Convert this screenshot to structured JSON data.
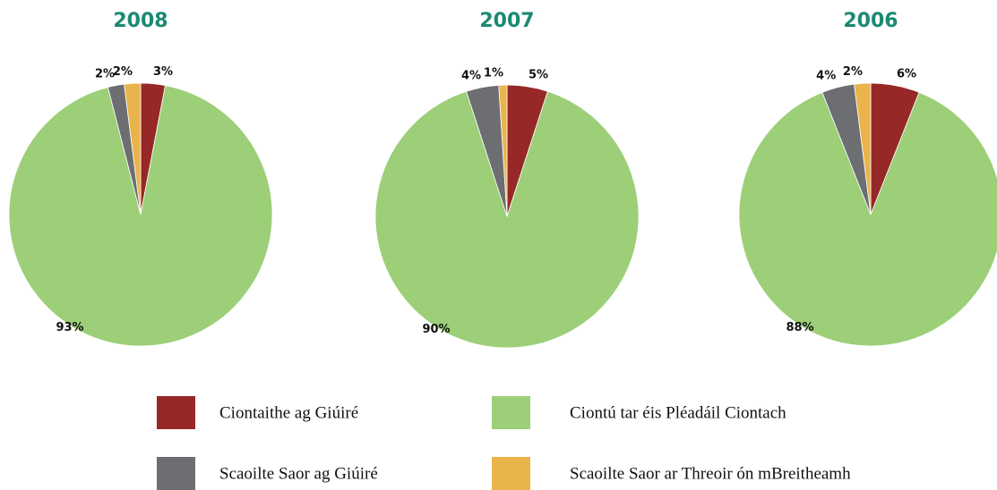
{
  "chart_data": [
    {
      "type": "pie",
      "title": "2008",
      "values": [
        3,
        93,
        2,
        2
      ],
      "value_labels": [
        "3%",
        "93%",
        "2%",
        "2%"
      ]
    },
    {
      "type": "pie",
      "title": "2007",
      "values": [
        5,
        90,
        4,
        1
      ],
      "value_labels": [
        "5%",
        "90%",
        "4%",
        "1%"
      ]
    },
    {
      "type": "pie",
      "title": "2006",
      "values": [
        6,
        88,
        4,
        2
      ],
      "value_labels": [
        "6%",
        "88%",
        "4%",
        "2%"
      ]
    }
  ],
  "legend": {
    "labels": [
      "Ciontaithe ag Giúiré",
      "Ciontú tar éis Pléadáil Ciontach",
      "Scaoilte Saor ag Giúiré",
      "Scaoilte Saor ar Threoir ón mBreitheamh"
    ],
    "colors": [
      "#962827",
      "#9ccf78",
      "#6d6e71",
      "#e9b44b"
    ]
  }
}
